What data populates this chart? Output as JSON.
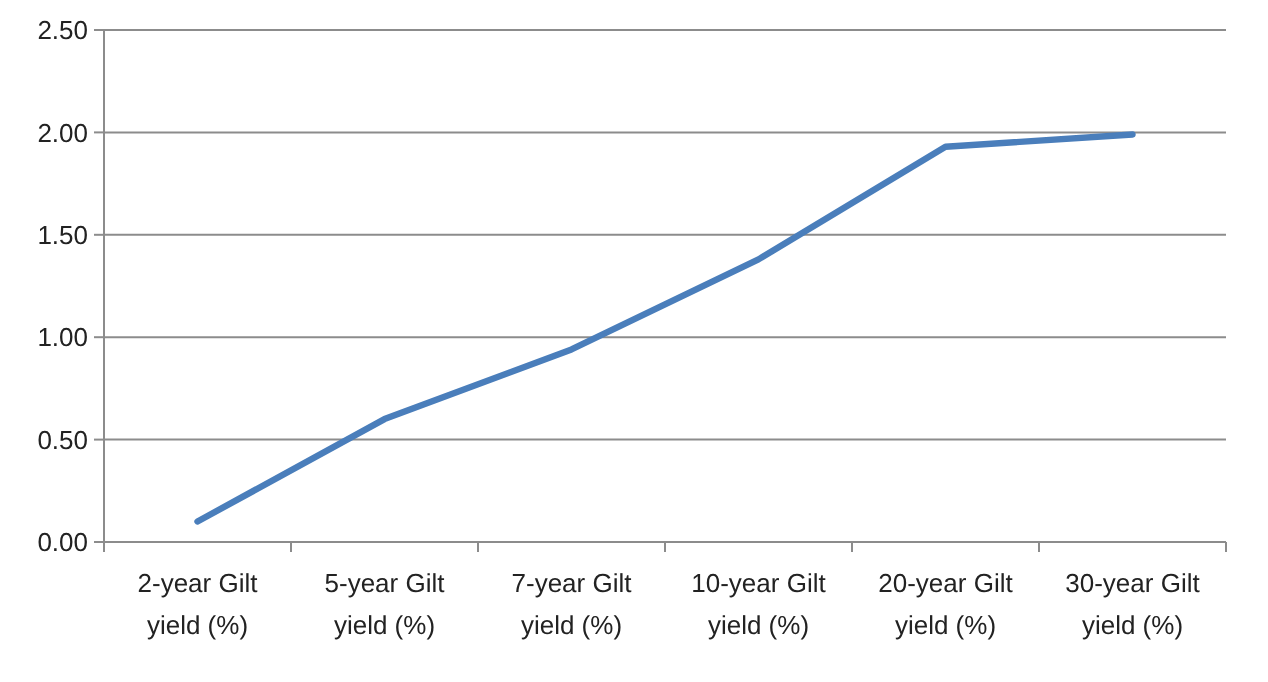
{
  "chart_data": {
    "type": "line",
    "categories": [
      "2-year Gilt yield (%)",
      "5-year Gilt yield (%)",
      "7-year Gilt yield (%)",
      "10-year Gilt yield (%)",
      "20-year Gilt yield (%)",
      "30-year Gilt yield (%)"
    ],
    "series": [
      {
        "color": "#4a7ebb",
        "values": [
          0.1,
          0.6,
          0.94,
          1.38,
          1.93,
          1.99
        ]
      }
    ],
    "ylim": [
      0,
      2.5
    ],
    "yticks": [
      {
        "value": 0,
        "label": "0.00"
      },
      {
        "value": 0.5,
        "label": "0.50"
      },
      {
        "value": 1,
        "label": "1.00"
      },
      {
        "value": 1.5,
        "label": "1.50"
      },
      {
        "value": 2,
        "label": "2.00"
      },
      {
        "value": 2.5,
        "label": "2.50"
      }
    ],
    "grid": "y",
    "marker": "none",
    "line_style": "solid"
  }
}
